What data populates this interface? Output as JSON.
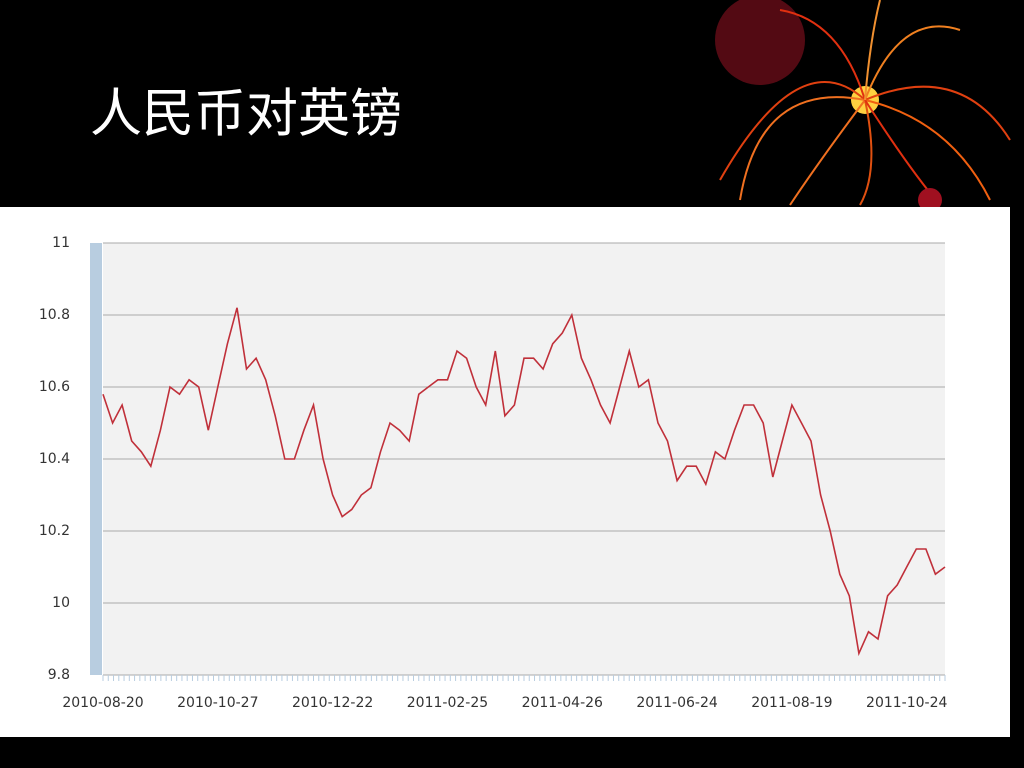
{
  "chart_data": {
    "type": "line",
    "title": "人民币对英镑",
    "categories": [
      "2010-08-20",
      null,
      null,
      null,
      null,
      null,
      null,
      null,
      null,
      null,
      null,
      null,
      "2010-10-27",
      null,
      null,
      null,
      null,
      null,
      null,
      null,
      null,
      null,
      null,
      null,
      "2010-12-22",
      null,
      null,
      null,
      null,
      null,
      null,
      null,
      null,
      null,
      null,
      null,
      "2011-02-25",
      null,
      null,
      null,
      null,
      null,
      null,
      null,
      null,
      null,
      null,
      null,
      "2011-04-26",
      null,
      null,
      null,
      null,
      null,
      null,
      null,
      null,
      null,
      null,
      null,
      "2011-06-24",
      null,
      null,
      null,
      null,
      null,
      null,
      null,
      null,
      null,
      null,
      null,
      "2011-08-19",
      null,
      null,
      null,
      null,
      null,
      null,
      null,
      null,
      null,
      null,
      null,
      "2011-10-24",
      null,
      null,
      null,
      null
    ],
    "values": [
      10.58,
      10.5,
      10.55,
      10.45,
      10.42,
      10.38,
      10.48,
      10.6,
      10.58,
      10.62,
      10.6,
      10.48,
      10.6,
      10.72,
      10.82,
      10.65,
      10.68,
      10.62,
      10.52,
      10.4,
      10.4,
      10.48,
      10.55,
      10.4,
      10.3,
      10.24,
      10.26,
      10.3,
      10.32,
      10.42,
      10.5,
      10.48,
      10.45,
      10.58,
      10.6,
      10.62,
      10.62,
      10.7,
      10.68,
      10.6,
      10.55,
      10.7,
      10.52,
      10.55,
      10.68,
      10.68,
      10.65,
      10.72,
      10.75,
      10.8,
      10.68,
      10.62,
      10.55,
      10.5,
      10.6,
      10.7,
      10.6,
      10.62,
      10.5,
      10.45,
      10.34,
      10.38,
      10.38,
      10.33,
      10.42,
      10.4,
      10.48,
      10.55,
      10.55,
      10.5,
      10.35,
      10.45,
      10.55,
      10.5,
      10.45,
      10.3,
      10.2,
      10.08,
      10.02,
      9.86,
      9.92,
      9.9,
      10.02,
      10.05,
      10.1,
      10.15,
      10.15,
      10.08,
      10.1
    ],
    "color": "#c0303a",
    "ylim": [
      9.8,
      11
    ],
    "yticks": [
      9.8,
      10,
      10.2,
      10.4,
      10.6,
      10.8,
      11
    ],
    "grid": true
  }
}
